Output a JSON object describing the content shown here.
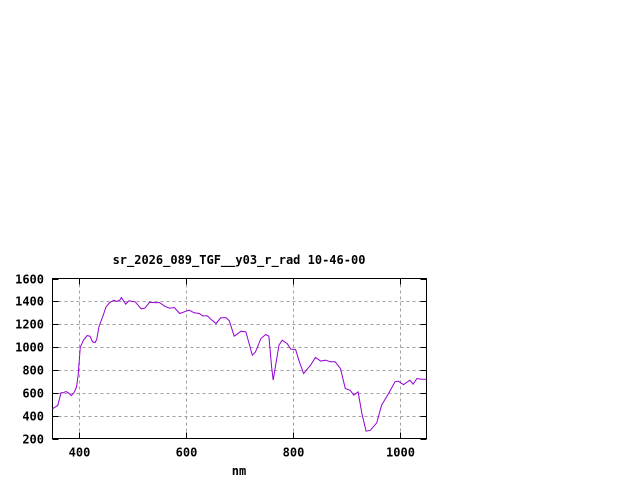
{
  "chart_data": {
    "type": "line",
    "title": "sr_2026_089_TGF__y03_r_rad 10-46-00",
    "xlabel": "nm",
    "ylabel": "",
    "xlim": [
      350,
      1050
    ],
    "ylim": [
      200,
      1600
    ],
    "xticks": [
      400,
      600,
      800,
      1000
    ],
    "yticks": [
      200,
      400,
      600,
      800,
      1000,
      1200,
      1400,
      1600
    ],
    "grid": true,
    "line_color": "#9400d3",
    "series": [
      {
        "x": [
          350,
          355,
          360,
          366,
          370,
          375,
          380,
          385,
          390,
          395,
          398,
          402,
          408,
          415,
          420,
          425,
          430,
          433,
          437,
          445,
          450,
          457,
          465,
          470,
          476,
          479,
          487,
          493,
          505,
          516,
          523,
          532,
          544,
          550,
          560,
          569,
          578,
          588,
          600,
          606,
          615,
          625,
          631,
          640,
          647,
          656,
          665,
          675,
          681,
          690,
          703,
          712,
          724,
          730,
          740,
          749,
          755,
          760,
          763,
          766,
          774,
          780,
          789,
          796,
          805,
          811,
          820,
          833,
          842,
          852,
          861,
          870,
          879,
          889,
          898,
          907,
          914,
          922,
          929,
          937,
          945,
          957,
          966,
          979,
          991,
          997,
          1007,
          1019,
          1025,
          1032,
          1041,
          1050
        ],
        "y": [
          460,
          475,
          490,
          600,
          600,
          610,
          600,
          575,
          600,
          650,
          750,
          1000,
          1060,
          1100,
          1095,
          1045,
          1040,
          1070,
          1180,
          1280,
          1350,
          1390,
          1410,
          1400,
          1410,
          1434,
          1375,
          1405,
          1395,
          1335,
          1340,
          1393,
          1387,
          1390,
          1358,
          1340,
          1346,
          1294,
          1314,
          1323,
          1300,
          1294,
          1273,
          1273,
          1241,
          1206,
          1256,
          1256,
          1230,
          1095,
          1139,
          1133,
          929,
          958,
          1075,
          1110,
          1095,
          827,
          710,
          798,
          1017,
          1060,
          1031,
          982,
          979,
          885,
          769,
          842,
          909,
          877,
          885,
          871,
          871,
          812,
          637,
          623,
          579,
          608,
          419,
          264,
          273,
          337,
          492,
          594,
          696,
          702,
          672,
          710,
          675,
          725,
          719,
          719
        ]
      }
    ]
  }
}
